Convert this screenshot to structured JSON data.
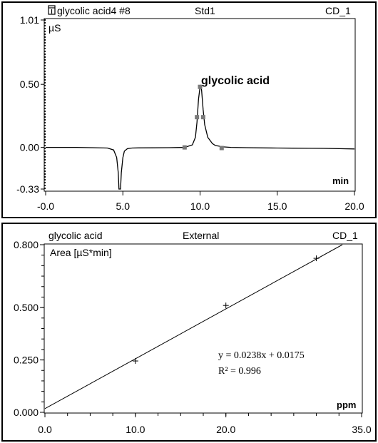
{
  "chromatogram": {
    "header": {
      "title": "glycolic acid4 #8",
      "method": "Std1",
      "channel": "CD_1"
    },
    "ylabel": "µS",
    "xlabel": "min",
    "peak_label": "glycolic acid",
    "colors": {
      "trace": "#000000",
      "markers": "#7a7a7a",
      "frame": "#000000"
    }
  },
  "calibration": {
    "header": {
      "title": "glycolic acid",
      "method": "External",
      "channel": "CD_1"
    },
    "ylabel": "Area  [µS*min]",
    "xlabel": "ppm",
    "equation": "y = 0.0238x + 0.0175",
    "r2": "R²   = 0.996"
  },
  "chart_data": [
    {
      "type": "line",
      "title": "glycolic acid4 #8",
      "xlabel": "min",
      "ylabel": "µS",
      "xlim": [
        0,
        20
      ],
      "ylim": [
        -0.33,
        1.01
      ],
      "x_ticks": [
        "-0.0",
        "5.0",
        "10.0",
        "15.0",
        "20.0"
      ],
      "y_ticks": [
        "-0.33",
        "0.00",
        "0.50",
        "1.01"
      ],
      "x_tick_values": [
        0,
        5,
        10,
        15,
        20
      ],
      "y_tick_values": [
        -0.33,
        0,
        0.5,
        1.01
      ],
      "series": [
        {
          "x": [
            0,
            1,
            2,
            3,
            4,
            4.4,
            4.6,
            4.7,
            4.75,
            4.8,
            4.85,
            4.9,
            5.0,
            5.1,
            5.3,
            5.6,
            6,
            7,
            8,
            8.5,
            9,
            9.5,
            9.7,
            9.8,
            9.9,
            10.0,
            10.05,
            10.1,
            10.2,
            10.3,
            10.5,
            10.8,
            11,
            11.5,
            12,
            13,
            14,
            15,
            16,
            17,
            18,
            19,
            20
          ],
          "y": [
            0,
            0,
            0,
            -0.002,
            -0.005,
            -0.02,
            -0.08,
            -0.2,
            -0.33,
            -0.33,
            -0.33,
            -0.2,
            -0.08,
            -0.03,
            -0.01,
            -0.005,
            -0.004,
            -0.003,
            -0.002,
            -0.001,
            0,
            0.02,
            0.08,
            0.2,
            0.38,
            0.48,
            0.49,
            0.45,
            0.3,
            0.18,
            0.08,
            0.03,
            0.015,
            0.004,
            0,
            -0.002,
            -0.004,
            -0.005,
            -0.006,
            -0.007,
            -0.008,
            -0.01,
            -0.012
          ]
        }
      ],
      "markers": {
        "x": [
          9.0,
          9.8,
          10.0,
          10.2,
          11.4
        ],
        "y": [
          0.0,
          0.24,
          0.48,
          0.24,
          -0.005
        ]
      },
      "annotations": [
        "glycolic acid"
      ]
    },
    {
      "type": "scatter",
      "title": "glycolic acid",
      "xlabel": "ppm",
      "ylabel": "Area  [µS*min]",
      "xlim": [
        0,
        35
      ],
      "ylim": [
        0,
        0.8
      ],
      "x_ticks": [
        "0.0",
        "10.0",
        "20.0",
        "35.0"
      ],
      "y_ticks": [
        "0.000",
        "0.250",
        "0.500",
        "0.800"
      ],
      "x_tick_values": [
        0,
        10,
        20,
        35
      ],
      "y_tick_values": [
        0,
        0.25,
        0.5,
        0.8
      ],
      "points": {
        "x": [
          10,
          20,
          30
        ],
        "y": [
          0.245,
          0.51,
          0.735
        ]
      },
      "fit": {
        "slope": 0.0238,
        "intercept": 0.0175
      },
      "annotations": [
        "y = 0.0238x + 0.0175",
        "R²   = 0.996"
      ]
    }
  ]
}
